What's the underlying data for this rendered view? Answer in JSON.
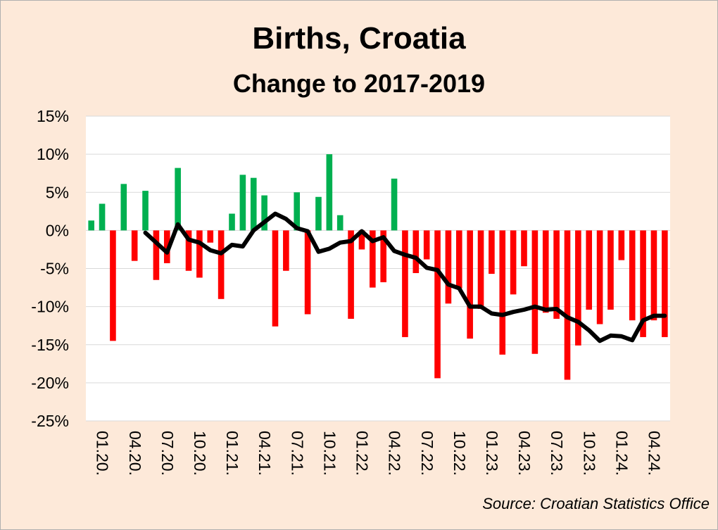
{
  "chart_data": {
    "type": "bar",
    "title": "Births, Croatia",
    "subtitle": "Change to 2017-2019",
    "source": "Source: Croatian Statistics Office",
    "ylim": [
      -25,
      15
    ],
    "y_tick_values": [
      15,
      10,
      5,
      0,
      -5,
      -10,
      -15,
      -20,
      -25
    ],
    "y_tick_labels": [
      "15%",
      "10%",
      "5%",
      "0%",
      "-5%",
      "-10%",
      "-15%",
      "-20%",
      "-25%"
    ],
    "x_tick_labels": [
      "01.20.",
      "04.20.",
      "07.20.",
      "10.20.",
      "01.21.",
      "04.21.",
      "07.21.",
      "10.21.",
      "01.22.",
      "04.22.",
      "07.22.",
      "10.22.",
      "01.23.",
      "04.23.",
      "07.23.",
      "10.23.",
      "01.24.",
      "04.24."
    ],
    "categories": [
      "01.20.",
      "02.20.",
      "03.20.",
      "04.20.",
      "05.20.",
      "06.20.",
      "07.20.",
      "08.20.",
      "09.20.",
      "10.20.",
      "11.20.",
      "12.20.",
      "01.21.",
      "02.21.",
      "03.21.",
      "04.21.",
      "05.21.",
      "06.21.",
      "07.21.",
      "08.21.",
      "09.21.",
      "10.21.",
      "11.21.",
      "12.21.",
      "01.22.",
      "02.22.",
      "03.22.",
      "04.22.",
      "05.22.",
      "06.22.",
      "07.22.",
      "08.22.",
      "09.22.",
      "10.22.",
      "11.22.",
      "12.22.",
      "01.23.",
      "02.23.",
      "03.23.",
      "04.23.",
      "05.23.",
      "06.23.",
      "07.23.",
      "08.23.",
      "09.23.",
      "10.23.",
      "11.23.",
      "12.23.",
      "01.24.",
      "02.24.",
      "03.24.",
      "04.24.",
      "05.24.",
      "06.24."
    ],
    "series": [
      {
        "kind": "bar",
        "values": [
          1.3,
          3.5,
          -14.5,
          6.1,
          -4.0,
          5.2,
          -6.5,
          -4.3,
          8.2,
          -5.3,
          -6.2,
          -1.6,
          -9.0,
          2.2,
          7.3,
          6.9,
          4.6,
          -12.6,
          -5.3,
          5.0,
          -11.0,
          4.4,
          10.0,
          2.0,
          -11.6,
          -2.5,
          -7.5,
          -6.8,
          6.8,
          -14.0,
          -5.6,
          -3.8,
          -19.4,
          -9.6,
          -7.6,
          -14.2,
          -10.3,
          -5.7,
          -16.3,
          -8.4,
          -4.7,
          -16.2,
          -10.8,
          -11.6,
          -19.6,
          -15.1,
          -10.4,
          -12.3,
          -10.4,
          -3.9,
          -11.8,
          -14.0,
          -11.8,
          -14.0
        ]
      },
      {
        "kind": "line",
        "values": [
          null,
          null,
          null,
          null,
          null,
          -0.3,
          -1.6,
          -2.9,
          0.8,
          -1.2,
          -1.6,
          -2.6,
          -3.0,
          -1.9,
          -2.1,
          0.0,
          1.1,
          2.2,
          1.5,
          0.3,
          -0.1,
          -2.8,
          -2.4,
          -1.6,
          -1.4,
          -0.1,
          -1.4,
          -0.9,
          -2.7,
          -3.2,
          -3.6,
          -4.9,
          -5.2,
          -7.1,
          -7.6,
          -10.0,
          -10.0,
          -10.9,
          -11.1,
          -10.7,
          -10.4,
          -10.0,
          -10.4,
          -10.3,
          -11.4,
          -12.0,
          -13.1,
          -14.5,
          -13.8,
          -13.9,
          -14.4,
          -11.8,
          -11.2,
          -11.2
        ]
      }
    ],
    "colors": {
      "positive": "#00b050",
      "negative": "#ff0000",
      "line": "#000000",
      "plot_background": "#ffffff",
      "page_background": "#fde9d9",
      "grid": "#d9d9d9"
    },
    "grid": true,
    "legend": "none"
  }
}
